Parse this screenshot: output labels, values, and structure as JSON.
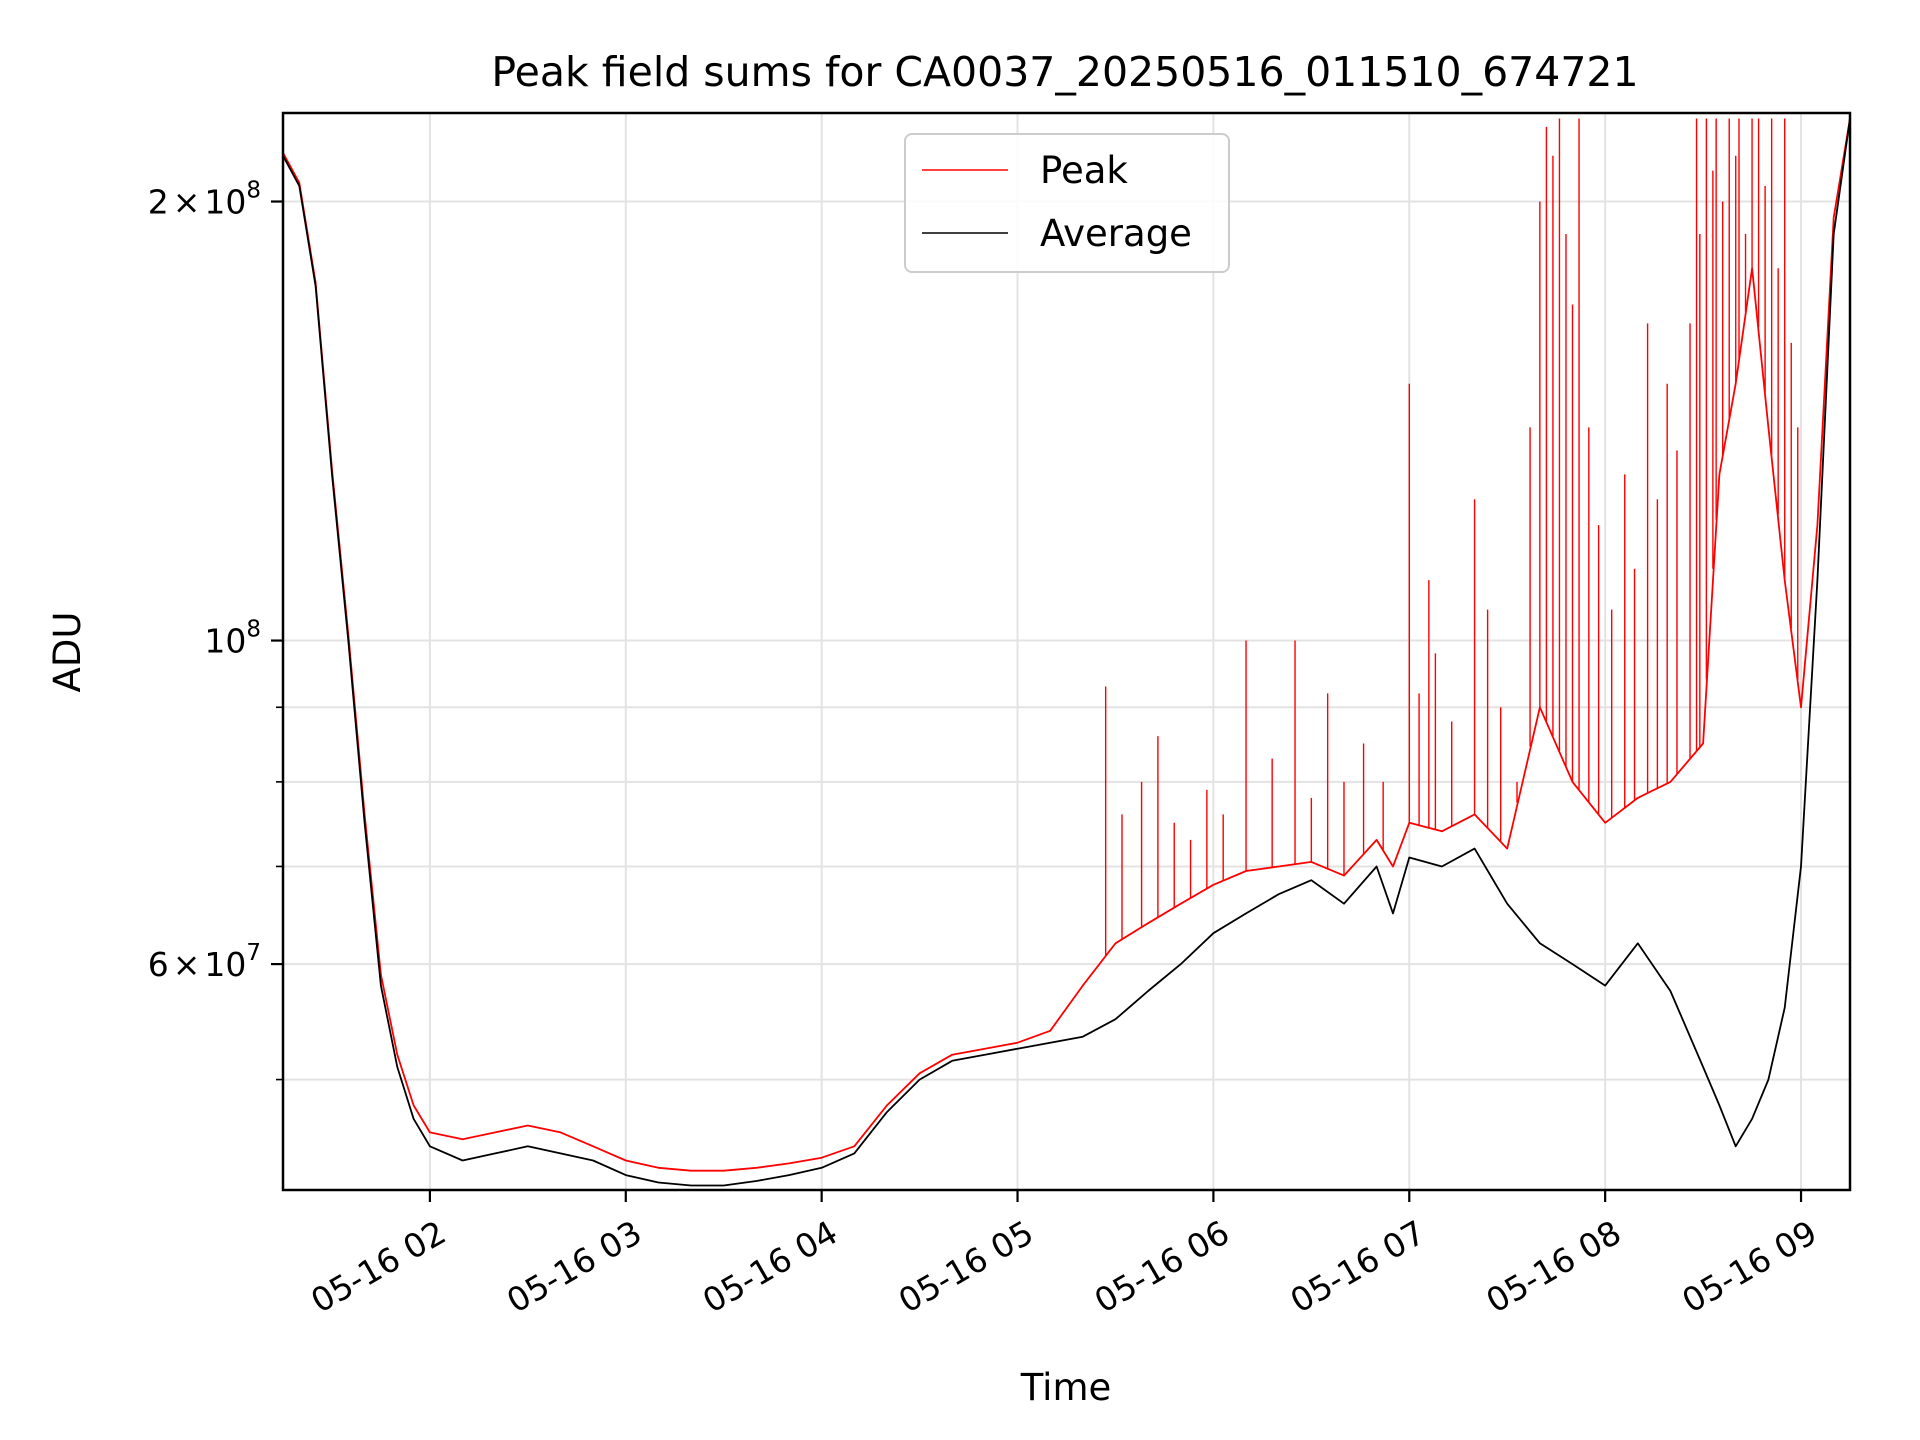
{
  "chart_data": {
    "type": "line",
    "title": "Peak field sums for CA0037_20250516_011510_674721",
    "xlabel": "Time",
    "ylabel": "ADU",
    "y_scale": "log",
    "ylim": [
      42000000,
      230000000
    ],
    "xlim": [
      "2025-05-16 01:15",
      "2025-05-16 09:15"
    ],
    "grid": true,
    "legend_position": "top-center",
    "x_ticks": [
      {
        "t": "2025-05-16 02:00",
        "label": "05-16 02"
      },
      {
        "t": "2025-05-16 03:00",
        "label": "05-16 03"
      },
      {
        "t": "2025-05-16 04:00",
        "label": "05-16 04"
      },
      {
        "t": "2025-05-16 05:00",
        "label": "05-16 05"
      },
      {
        "t": "2025-05-16 06:00",
        "label": "05-16 06"
      },
      {
        "t": "2025-05-16 07:00",
        "label": "05-16 07"
      },
      {
        "t": "2025-05-16 08:00",
        "label": "05-16 08"
      },
      {
        "t": "2025-05-16 09:00",
        "label": "05-16 09"
      }
    ],
    "y_ticks_major": [
      {
        "value": 60000000,
        "mantissa": "6",
        "times": "×",
        "base": "10",
        "exp": "7"
      },
      {
        "value": 100000000,
        "mantissa": "",
        "times": "",
        "base": "10",
        "exp": "8"
      },
      {
        "value": 200000000,
        "mantissa": "2",
        "times": "×",
        "base": "10",
        "exp": "8"
      }
    ],
    "y_ticks_minor": [
      50000000,
      70000000,
      80000000,
      90000000
    ],
    "series": [
      {
        "name": "Average",
        "color": "#000000",
        "x": [
          "2025-05-16 01:15",
          "2025-05-16 01:20",
          "2025-05-16 01:25",
          "2025-05-16 01:30",
          "2025-05-16 01:35",
          "2025-05-16 01:40",
          "2025-05-16 01:45",
          "2025-05-16 01:50",
          "2025-05-16 01:55",
          "2025-05-16 02:00",
          "2025-05-16 02:10",
          "2025-05-16 02:20",
          "2025-05-16 02:30",
          "2025-05-16 02:40",
          "2025-05-16 02:50",
          "2025-05-16 03:00",
          "2025-05-16 03:10",
          "2025-05-16 03:20",
          "2025-05-16 03:30",
          "2025-05-16 03:40",
          "2025-05-16 03:50",
          "2025-05-16 04:00",
          "2025-05-16 04:10",
          "2025-05-16 04:20",
          "2025-05-16 04:30",
          "2025-05-16 04:40",
          "2025-05-16 04:50",
          "2025-05-16 05:00",
          "2025-05-16 05:10",
          "2025-05-16 05:20",
          "2025-05-16 05:30",
          "2025-05-16 05:40",
          "2025-05-16 05:50",
          "2025-05-16 06:00",
          "2025-05-16 06:10",
          "2025-05-16 06:20",
          "2025-05-16 06:30",
          "2025-05-16 06:40",
          "2025-05-16 06:50",
          "2025-05-16 06:55",
          "2025-05-16 07:00",
          "2025-05-16 07:10",
          "2025-05-16 07:20",
          "2025-05-16 07:30",
          "2025-05-16 07:40",
          "2025-05-16 07:50",
          "2025-05-16 08:00",
          "2025-05-16 08:10",
          "2025-05-16 08:20",
          "2025-05-16 08:30",
          "2025-05-16 08:35",
          "2025-05-16 08:40",
          "2025-05-16 08:45",
          "2025-05-16 08:50",
          "2025-05-16 08:55",
          "2025-05-16 09:00",
          "2025-05-16 09:05",
          "2025-05-16 09:10",
          "2025-05-16 09:15"
        ],
        "values": [
          215000000,
          205000000,
          175000000,
          130000000,
          100000000,
          75000000,
          58000000,
          51000000,
          47000000,
          45000000,
          44000000,
          44500000,
          45000000,
          44500000,
          44000000,
          43000000,
          42500000,
          42300000,
          42300000,
          42600000,
          43000000,
          43500000,
          44500000,
          47500000,
          50000000,
          51500000,
          52000000,
          52500000,
          53000000,
          53500000,
          55000000,
          57500000,
          60000000,
          63000000,
          65000000,
          67000000,
          68500000,
          66000000,
          70000000,
          65000000,
          71000000,
          70000000,
          72000000,
          66000000,
          62000000,
          60000000,
          58000000,
          62000000,
          57500000,
          51000000,
          48000000,
          45000000,
          47000000,
          50000000,
          56000000,
          70000000,
          110000000,
          190000000,
          228000000
        ]
      },
      {
        "name": "Peak",
        "color": "#ff0000",
        "x": [
          "2025-05-16 01:15",
          "2025-05-16 01:20",
          "2025-05-16 01:25",
          "2025-05-16 01:30",
          "2025-05-16 01:35",
          "2025-05-16 01:40",
          "2025-05-16 01:45",
          "2025-05-16 01:50",
          "2025-05-16 01:55",
          "2025-05-16 02:00",
          "2025-05-16 02:10",
          "2025-05-16 02:20",
          "2025-05-16 02:30",
          "2025-05-16 02:40",
          "2025-05-16 02:50",
          "2025-05-16 03:00",
          "2025-05-16 03:10",
          "2025-05-16 03:20",
          "2025-05-16 03:30",
          "2025-05-16 03:40",
          "2025-05-16 03:50",
          "2025-05-16 04:00",
          "2025-05-16 04:10",
          "2025-05-16 04:20",
          "2025-05-16 04:30",
          "2025-05-16 04:40",
          "2025-05-16 04:50",
          "2025-05-16 05:00",
          "2025-05-16 05:10",
          "2025-05-16 05:20",
          "2025-05-16 05:30",
          "2025-05-16 05:40",
          "2025-05-16 05:50",
          "2025-05-16 06:00",
          "2025-05-16 06:10",
          "2025-05-16 06:20",
          "2025-05-16 06:30",
          "2025-05-16 06:40",
          "2025-05-16 06:50",
          "2025-05-16 06:55",
          "2025-05-16 07:00",
          "2025-05-16 07:10",
          "2025-05-16 07:20",
          "2025-05-16 07:30",
          "2025-05-16 07:40",
          "2025-05-16 07:50",
          "2025-05-16 08:00",
          "2025-05-16 08:10",
          "2025-05-16 08:20",
          "2025-05-16 08:30",
          "2025-05-16 08:35",
          "2025-05-16 08:40",
          "2025-05-16 08:45",
          "2025-05-16 08:50",
          "2025-05-16 08:55",
          "2025-05-16 09:00",
          "2025-05-16 09:05",
          "2025-05-16 09:10",
          "2025-05-16 09:15"
        ],
        "values": [
          216000000,
          206000000,
          176000000,
          131000000,
          101000000,
          76000000,
          59000000,
          52000000,
          48000000,
          46000000,
          45500000,
          46000000,
          46500000,
          46000000,
          45000000,
          44000000,
          43500000,
          43300000,
          43300000,
          43500000,
          43800000,
          44200000,
          45000000,
          48000000,
          50500000,
          52000000,
          52500000,
          53000000,
          54000000,
          58000000,
          62000000,
          64000000,
          66000000,
          68000000,
          69500000,
          70000000,
          70500000,
          69000000,
          73000000,
          70000000,
          75000000,
          74000000,
          76000000,
          72000000,
          90000000,
          80000000,
          75000000,
          78000000,
          80000000,
          85000000,
          130000000,
          150000000,
          180000000,
          140000000,
          110000000,
          90000000,
          120000000,
          195000000,
          228000000
        ],
        "spikes": [
          {
            "t": "2025-05-16 05:27",
            "v": 93000000
          },
          {
            "t": "2025-05-16 05:32",
            "v": 76000000
          },
          {
            "t": "2025-05-16 05:38",
            "v": 80000000
          },
          {
            "t": "2025-05-16 05:43",
            "v": 86000000
          },
          {
            "t": "2025-05-16 05:48",
            "v": 75000000
          },
          {
            "t": "2025-05-16 05:53",
            "v": 73000000
          },
          {
            "t": "2025-05-16 05:58",
            "v": 79000000
          },
          {
            "t": "2025-05-16 06:03",
            "v": 76000000
          },
          {
            "t": "2025-05-16 06:10",
            "v": 100000000
          },
          {
            "t": "2025-05-16 06:18",
            "v": 83000000
          },
          {
            "t": "2025-05-16 06:25",
            "v": 100000000
          },
          {
            "t": "2025-05-16 06:30",
            "v": 78000000
          },
          {
            "t": "2025-05-16 06:35",
            "v": 92000000
          },
          {
            "t": "2025-05-16 06:40",
            "v": 80000000
          },
          {
            "t": "2025-05-16 06:46",
            "v": 85000000
          },
          {
            "t": "2025-05-16 06:52",
            "v": 80000000
          },
          {
            "t": "2025-05-16 07:00",
            "v": 150000000
          },
          {
            "t": "2025-05-16 07:03",
            "v": 92000000
          },
          {
            "t": "2025-05-16 07:06",
            "v": 110000000
          },
          {
            "t": "2025-05-16 07:08",
            "v": 98000000
          },
          {
            "t": "2025-05-16 07:13",
            "v": 88000000
          },
          {
            "t": "2025-05-16 07:20",
            "v": 125000000
          },
          {
            "t": "2025-05-16 07:24",
            "v": 105000000
          },
          {
            "t": "2025-05-16 07:28",
            "v": 90000000
          },
          {
            "t": "2025-05-16 07:33",
            "v": 80000000
          },
          {
            "t": "2025-05-16 07:37",
            "v": 140000000
          },
          {
            "t": "2025-05-16 07:40",
            "v": 200000000
          },
          {
            "t": "2025-05-16 07:42",
            "v": 225000000
          },
          {
            "t": "2025-05-16 07:44",
            "v": 215000000
          },
          {
            "t": "2025-05-16 07:46",
            "v": 228000000
          },
          {
            "t": "2025-05-16 07:48",
            "v": 190000000
          },
          {
            "t": "2025-05-16 07:50",
            "v": 170000000
          },
          {
            "t": "2025-05-16 07:52",
            "v": 228000000
          },
          {
            "t": "2025-05-16 07:55",
            "v": 140000000
          },
          {
            "t": "2025-05-16 07:58",
            "v": 120000000
          },
          {
            "t": "2025-05-16 08:02",
            "v": 105000000
          },
          {
            "t": "2025-05-16 08:06",
            "v": 130000000
          },
          {
            "t": "2025-05-16 08:09",
            "v": 112000000
          },
          {
            "t": "2025-05-16 08:13",
            "v": 165000000
          },
          {
            "t": "2025-05-16 08:16",
            "v": 125000000
          },
          {
            "t": "2025-05-16 08:19",
            "v": 150000000
          },
          {
            "t": "2025-05-16 08:22",
            "v": 135000000
          },
          {
            "t": "2025-05-16 08:26",
            "v": 165000000
          },
          {
            "t": "2025-05-16 08:28",
            "v": 228000000
          },
          {
            "t": "2025-05-16 08:29",
            "v": 190000000
          },
          {
            "t": "2025-05-16 08:31",
            "v": 228000000
          },
          {
            "t": "2025-05-16 08:33",
            "v": 210000000
          },
          {
            "t": "2025-05-16 08:34",
            "v": 228000000
          },
          {
            "t": "2025-05-16 08:36",
            "v": 200000000
          },
          {
            "t": "2025-05-16 08:38",
            "v": 228000000
          },
          {
            "t": "2025-05-16 08:40",
            "v": 215000000
          },
          {
            "t": "2025-05-16 08:41",
            "v": 228000000
          },
          {
            "t": "2025-05-16 08:43",
            "v": 190000000
          },
          {
            "t": "2025-05-16 08:45",
            "v": 228000000
          },
          {
            "t": "2025-05-16 08:47",
            "v": 228000000
          },
          {
            "t": "2025-05-16 08:49",
            "v": 205000000
          },
          {
            "t": "2025-05-16 08:51",
            "v": 228000000
          },
          {
            "t": "2025-05-16 08:53",
            "v": 180000000
          },
          {
            "t": "2025-05-16 08:55",
            "v": 228000000
          },
          {
            "t": "2025-05-16 08:57",
            "v": 160000000
          },
          {
            "t": "2025-05-16 08:59",
            "v": 140000000
          }
        ]
      }
    ]
  }
}
